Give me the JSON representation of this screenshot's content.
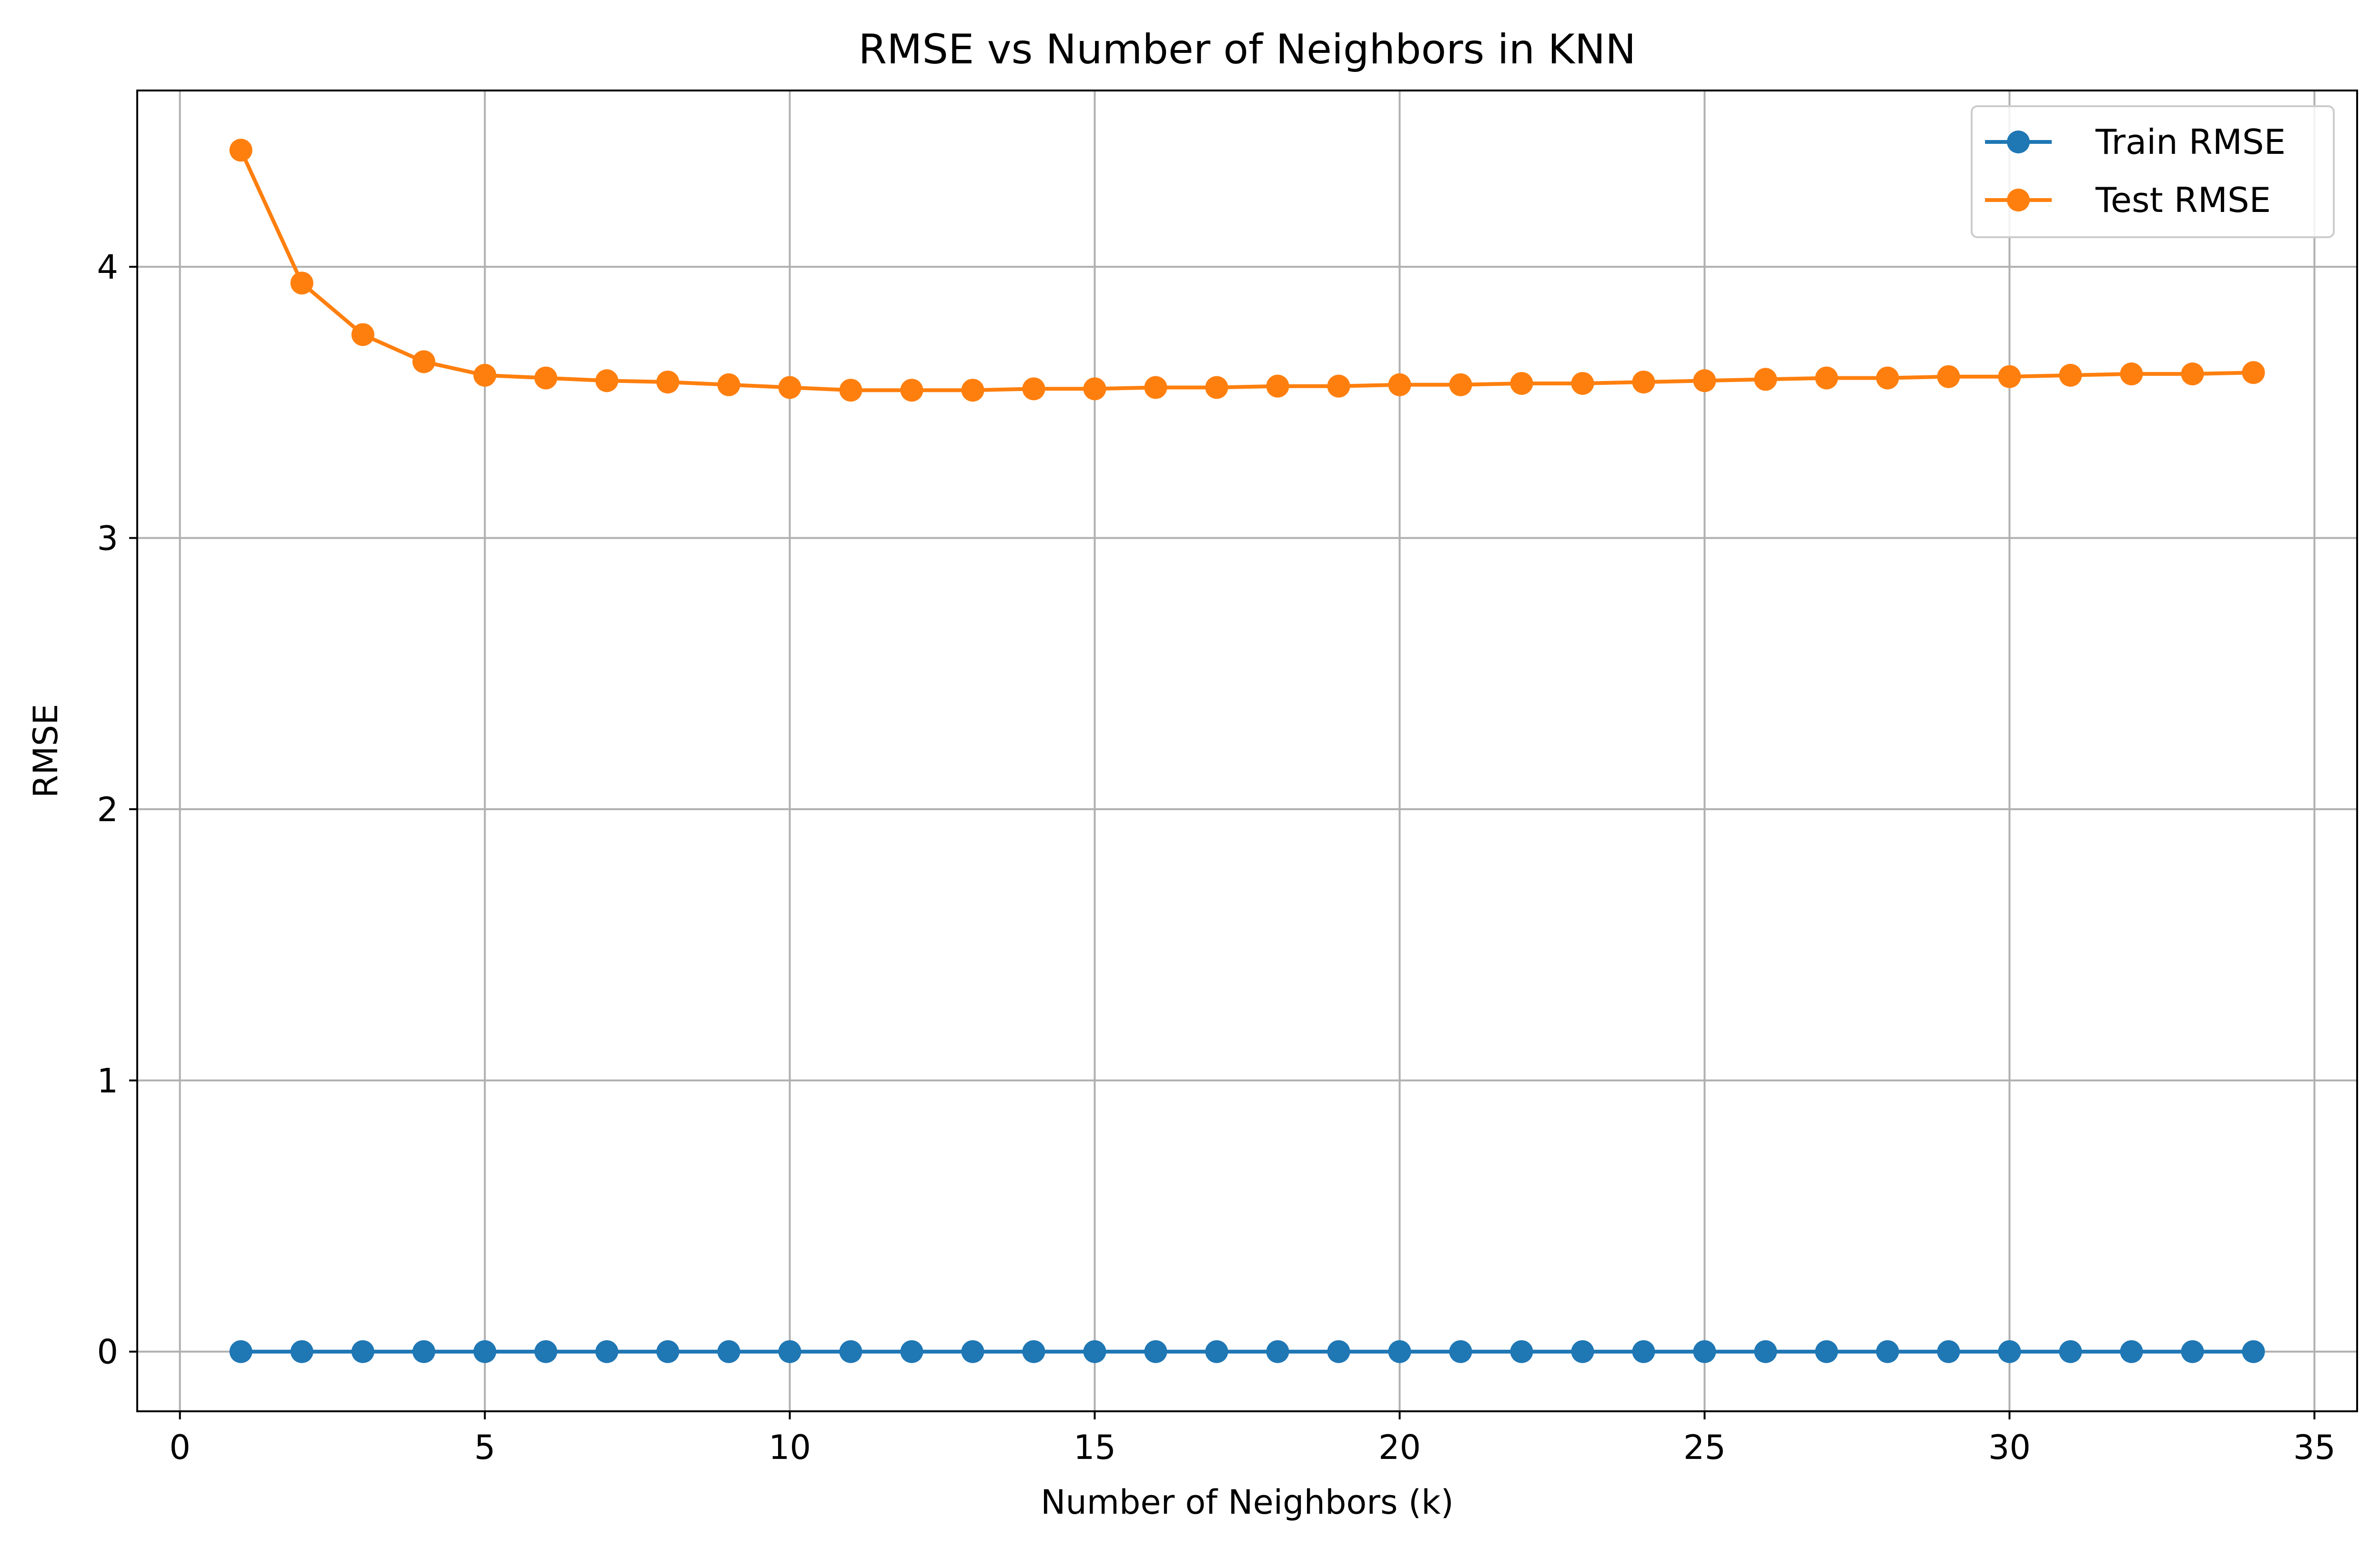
{
  "chart_data": {
    "type": "line",
    "title": "RMSE vs Number of Neighbors in KNN",
    "xlabel": "Number of Neighbors (k)",
    "ylabel": "RMSE",
    "xlim": [
      -0.7,
      35.7
    ],
    "ylim": [
      -0.22,
      4.65
    ],
    "xticks": [
      0,
      5,
      10,
      15,
      20,
      25,
      30,
      35
    ],
    "yticks": [
      0,
      1,
      2,
      3,
      4
    ],
    "grid": true,
    "legend_position": "top-right",
    "x": [
      1,
      2,
      3,
      4,
      5,
      6,
      7,
      8,
      9,
      10,
      11,
      12,
      13,
      14,
      15,
      16,
      17,
      18,
      19,
      20,
      21,
      22,
      23,
      24,
      25,
      26,
      27,
      28,
      29,
      30,
      31,
      32,
      33,
      34
    ],
    "series": [
      {
        "name": "Train RMSE",
        "color": "#1f77b4",
        "marker": "circle",
        "values": [
          0,
          0,
          0,
          0,
          0,
          0,
          0,
          0,
          0,
          0,
          0,
          0,
          0,
          0,
          0,
          0,
          0,
          0,
          0,
          0,
          0,
          0,
          0,
          0,
          0,
          0,
          0,
          0,
          0,
          0,
          0,
          0,
          0,
          0
        ]
      },
      {
        "name": "Test RMSE",
        "color": "#ff7f0e",
        "marker": "circle",
        "values": [
          4.43,
          3.94,
          3.75,
          3.65,
          3.6,
          3.59,
          3.58,
          3.575,
          3.565,
          3.555,
          3.545,
          3.545,
          3.545,
          3.55,
          3.55,
          3.555,
          3.555,
          3.56,
          3.56,
          3.565,
          3.565,
          3.57,
          3.57,
          3.575,
          3.58,
          3.585,
          3.59,
          3.59,
          3.595,
          3.595,
          3.6,
          3.605,
          3.605,
          3.61
        ]
      }
    ]
  }
}
